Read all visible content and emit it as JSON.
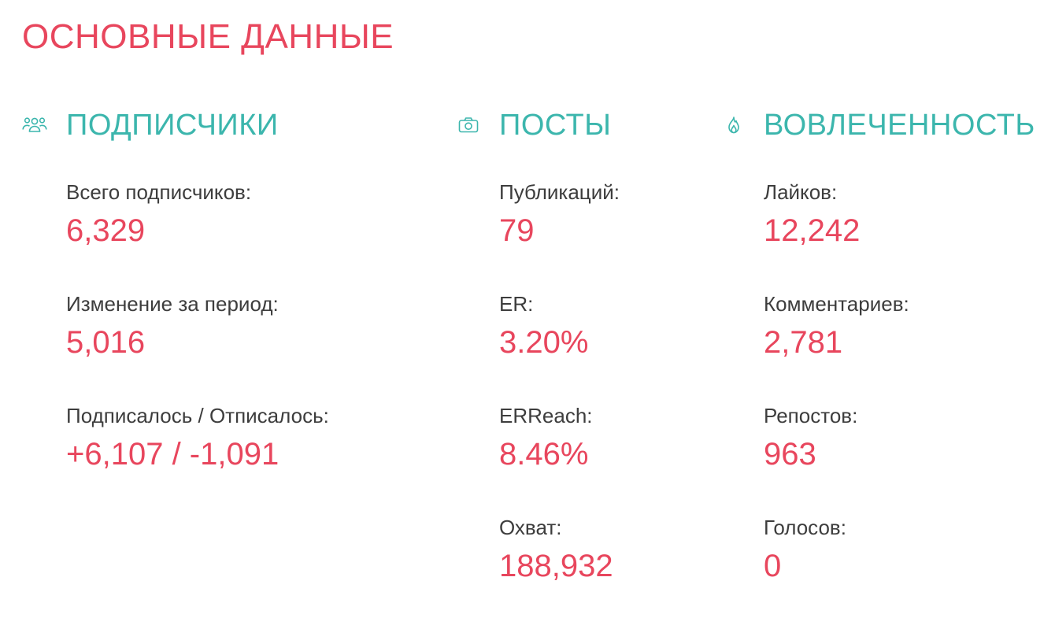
{
  "page": {
    "title": "ОСНОВНЫЕ ДАННЫЕ"
  },
  "colors": {
    "accent_red": "#e8465d",
    "accent_teal": "#3cb6ad",
    "label_text": "#3d3d3d"
  },
  "sections": {
    "subscribers": {
      "icon": "users-icon",
      "title": "ПОДПИСЧИКИ",
      "metrics": [
        {
          "label": "Всего подписчиков:",
          "value": "6,329"
        },
        {
          "label": "Изменение за период:",
          "value": "5,016"
        },
        {
          "label": "Подписалось / Отписалось:",
          "value": "+6,107 / -1,091"
        }
      ]
    },
    "posts": {
      "icon": "camera-icon",
      "title": "ПОСТЫ",
      "metrics": [
        {
          "label": "Публикаций:",
          "value": "79"
        },
        {
          "label": "ER:",
          "value": "3.20%"
        },
        {
          "label": "ERReach:",
          "value": "8.46%"
        },
        {
          "label": "Охват:",
          "value": "188,932"
        }
      ]
    },
    "engagement": {
      "icon": "flame-icon",
      "title": "ВОВЛЕЧЕННОСТЬ",
      "metrics": [
        {
          "label": "Лайков:",
          "value": "12,242"
        },
        {
          "label": "Комментариев:",
          "value": "2,781"
        },
        {
          "label": "Репостов:",
          "value": "963"
        },
        {
          "label": "Голосов:",
          "value": "0"
        }
      ]
    }
  }
}
